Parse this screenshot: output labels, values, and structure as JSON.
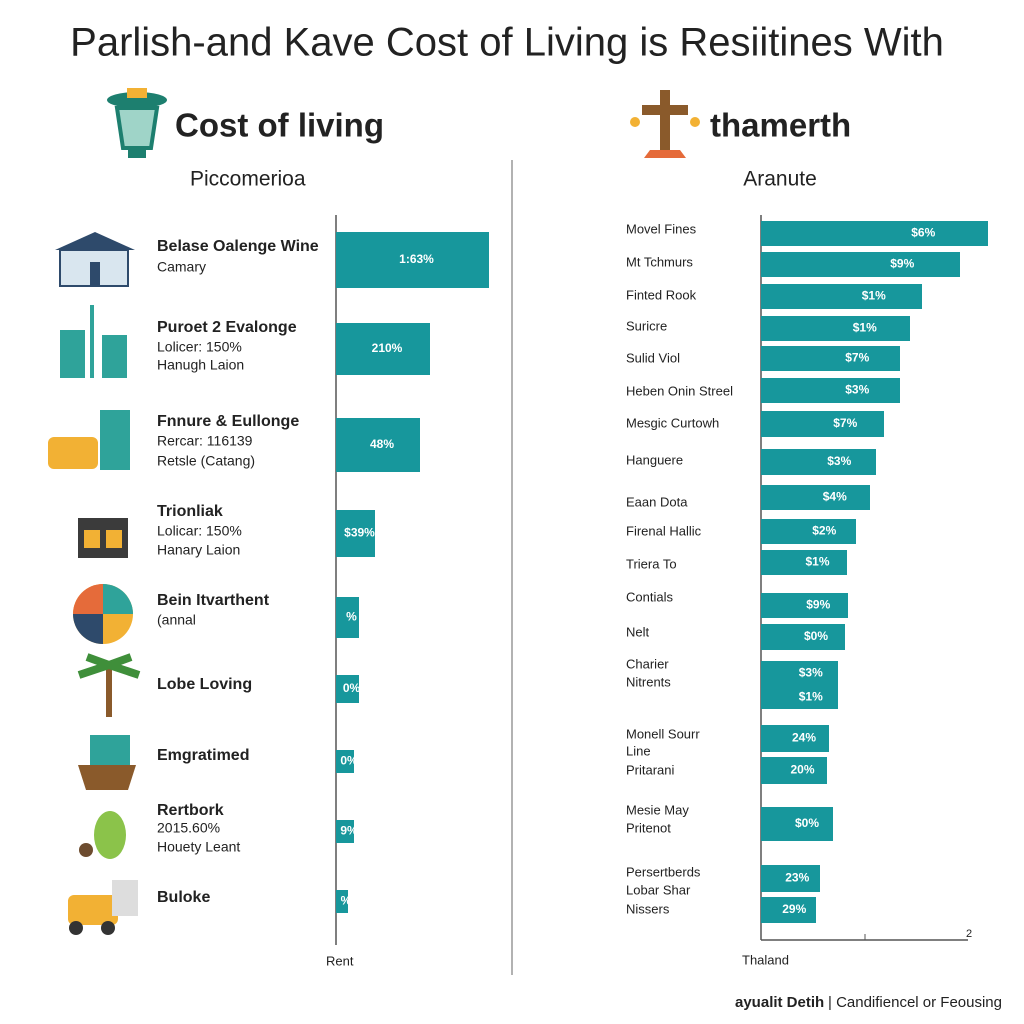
{
  "title": "Parlish-and Kave Cost of Living is Resiitines With",
  "left": {
    "heading": "Cost of living",
    "subheading": "Piccomerioa",
    "axis_label": "Rent",
    "items": [
      {
        "lines": [
          "Belase Oalenge Wine",
          "Camary"
        ],
        "bar_label": "1:63%"
      },
      {
        "lines": [
          "Puroet 2 Evalonge",
          "Lolicer: 150%",
          "Hanugh Laion"
        ],
        "bar_label": "210%"
      },
      {
        "lines": [
          "Fnnure & Eullonge",
          "Rercar: 116139",
          "Retsle (Catang)"
        ],
        "bar_label": "48%"
      },
      {
        "lines": [
          "Trionliak",
          "Lolicar: 150%",
          "Hanary Laion"
        ],
        "bar_label": "$39%"
      },
      {
        "lines": [
          "Bein Itvarthent",
          "(annal"
        ],
        "bar_label": "%"
      },
      {
        "lines": [
          "Lobe Loving"
        ],
        "bar_label": "0%"
      },
      {
        "lines": [
          "Emgratimed"
        ],
        "bar_label": "0%"
      },
      {
        "lines": [
          "Rertbork",
          "2015.60%",
          "Houety Leant"
        ],
        "bar_label": "9%"
      },
      {
        "lines": [
          "Buloke"
        ],
        "bar_label": "%"
      }
    ]
  },
  "right": {
    "heading": "thamerth",
    "subheading": "Aranute",
    "axis_label": "Thaland",
    "axis_tick": "2",
    "items": [
      {
        "lines": [
          "Movel Fines"
        ],
        "bar_labels": [
          "$6%"
        ]
      },
      {
        "lines": [
          "Mt Tchmurs"
        ],
        "bar_labels": [
          "$9%"
        ]
      },
      {
        "lines": [
          "Finted Rook"
        ],
        "bar_labels": [
          "$1%"
        ]
      },
      {
        "lines": [
          "Suricre"
        ],
        "bar_labels": [
          "$1%"
        ]
      },
      {
        "lines": [
          "Sulid Viol"
        ],
        "bar_labels": [
          "$7%"
        ]
      },
      {
        "lines": [
          "Heben Onin Streel"
        ],
        "bar_labels": [
          "$3%"
        ]
      },
      {
        "lines": [
          "Mesgic Curtowh"
        ],
        "bar_labels": [
          "$7%"
        ]
      },
      {
        "lines": [
          "Hanguere"
        ],
        "bar_labels": [
          "$3%"
        ]
      },
      {
        "lines": [
          "Eaan Dota"
        ],
        "bar_labels": [
          "$4%"
        ]
      },
      {
        "lines": [
          "Firenal Hallic"
        ],
        "bar_labels": [
          "$2%"
        ]
      },
      {
        "lines": [
          "Triera To"
        ],
        "bar_labels": [
          "$1%"
        ]
      },
      {
        "lines": [
          "Contials"
        ],
        "bar_labels": [
          "$9%"
        ]
      },
      {
        "lines": [
          "Nelt"
        ],
        "bar_labels": [
          "$0%"
        ]
      },
      {
        "lines": [
          "Charier",
          "Nitrents"
        ],
        "bar_labels": [
          "$3%",
          "$1%"
        ]
      },
      {
        "lines": [
          "Monell Sourr",
          "Line",
          "Pritarani"
        ],
        "bar_labels": [
          "24%",
          "20%"
        ]
      },
      {
        "lines": [
          "Mesie May",
          "Pritenot"
        ],
        "bar_labels": [
          "$0%"
        ]
      },
      {
        "lines": [
          "Persertberds",
          "Lobar Shar",
          "Nissers"
        ],
        "bar_labels": [
          "23%",
          "29%"
        ]
      }
    ]
  },
  "footer": {
    "brand": "ayualit Detih",
    "text": "| Candifiencel or Feousing"
  }
}
